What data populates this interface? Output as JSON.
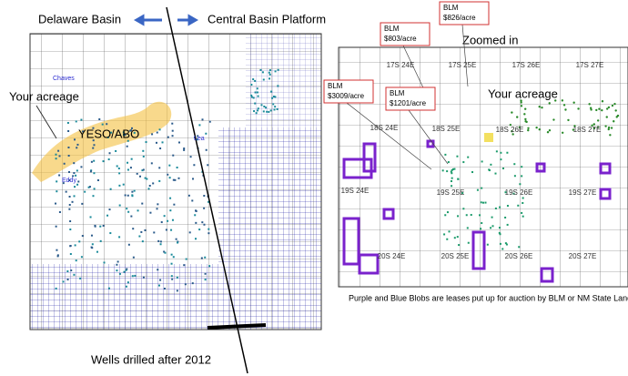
{
  "left_map": {
    "basin_west": "Delaware Basin",
    "basin_east": "Central Basin Platform",
    "acreage_label": "Your acreage",
    "play_label": "YESO/ABO",
    "counties": [
      "Chaves",
      "Eddy",
      "Lea"
    ],
    "caption": "Wells drilled after 2012"
  },
  "right_map": {
    "title": "Zoomed in",
    "acreage_label": "Your acreage",
    "callouts": [
      {
        "agency": "BLM",
        "price": "$803/acre"
      },
      {
        "agency": "BLM",
        "price": "$826/acre"
      },
      {
        "agency": "BLM",
        "price": "$3009/acre"
      },
      {
        "agency": "BLM",
        "price": "$1201/acre"
      }
    ],
    "townships": [
      "17S 24E",
      "17S 25E",
      "17S 26E",
      "17S 27E",
      "18S 24E",
      "18S 25E",
      "18S 26E",
      "18S 27E",
      "19S 24E",
      "19S 25E",
      "19S 26E",
      "19S 27E",
      "20S 24E",
      "20S 25E",
      "20S 26E",
      "20S 27E"
    ],
    "caption": "Purple and Blue Blobs are leases put up for auction by BLM or NM State Land office in the last year"
  }
}
